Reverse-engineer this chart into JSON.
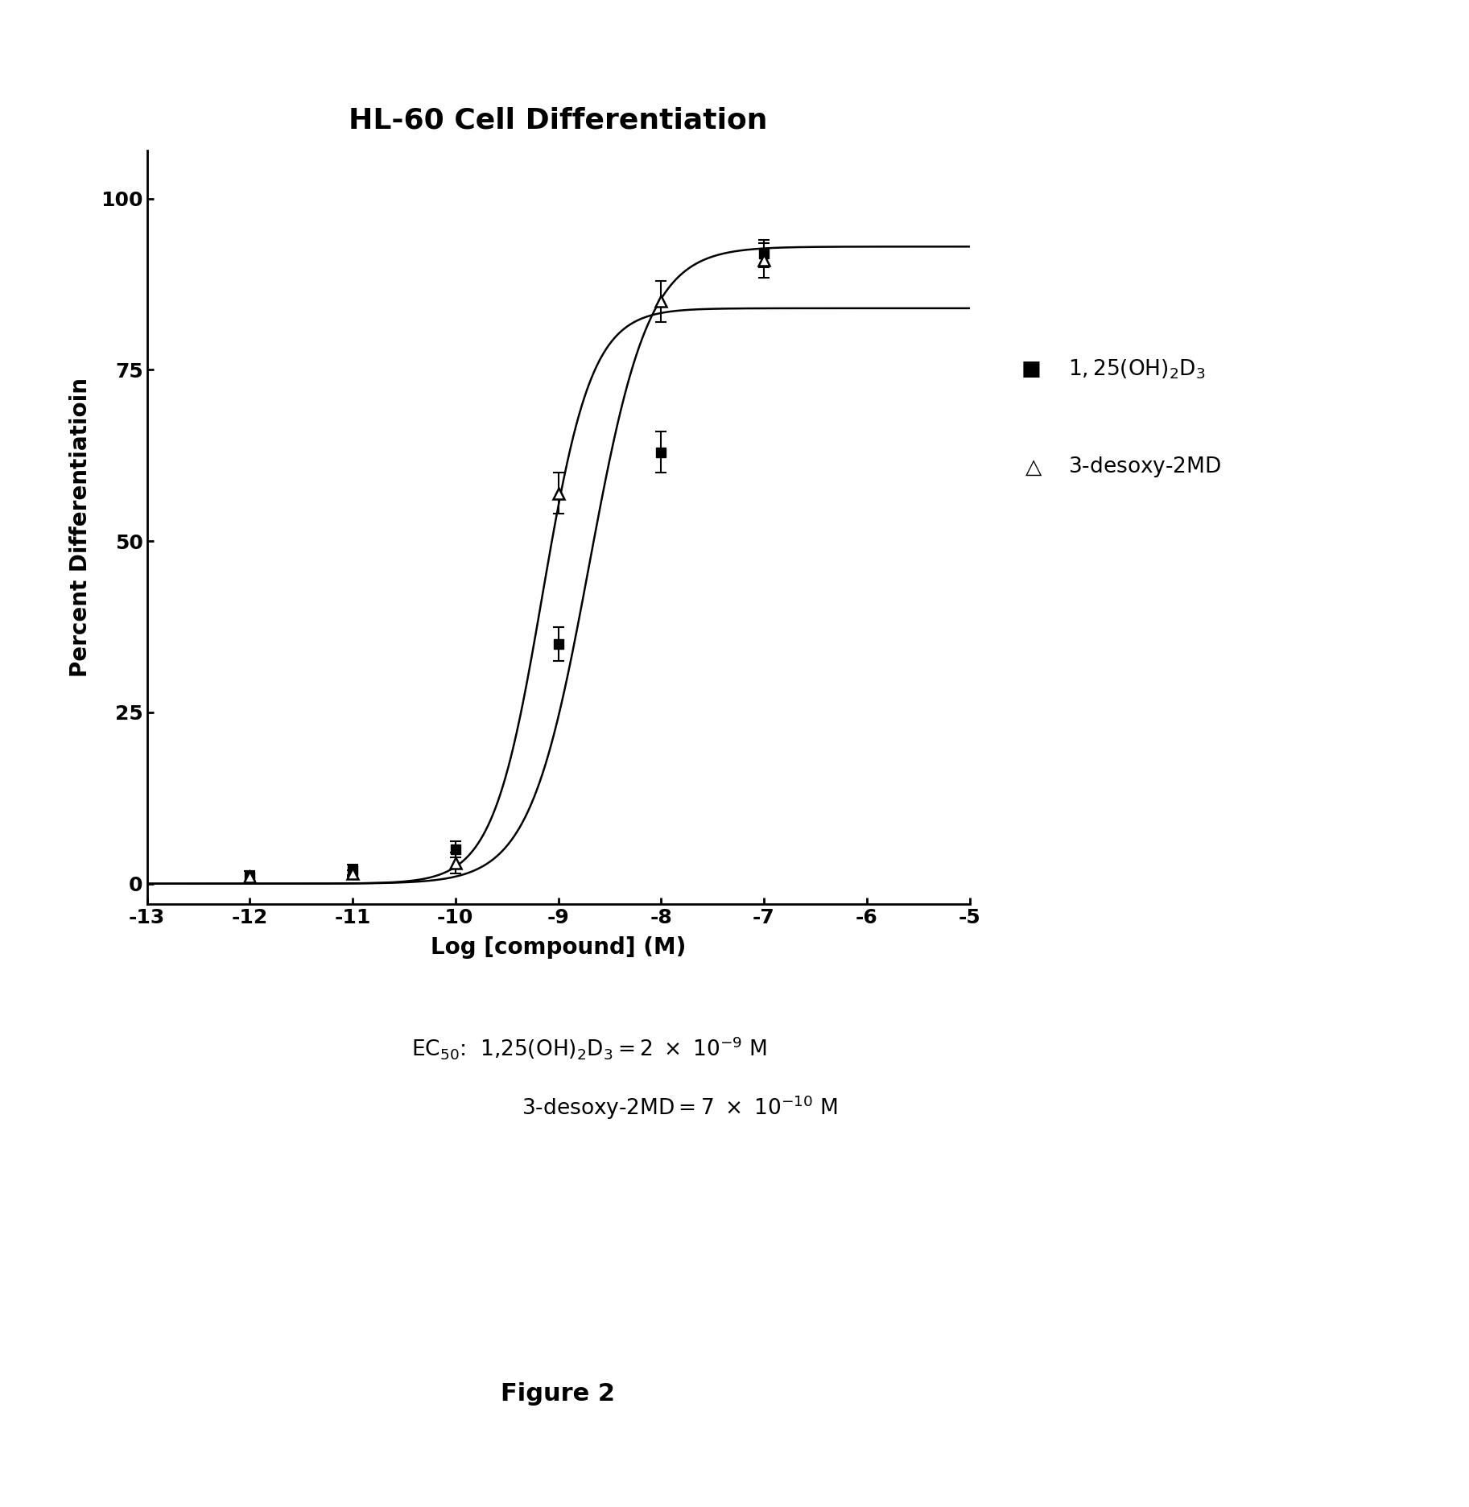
{
  "title": "HL-60 Cell Differentiation",
  "xlabel": "Log [compound] (M)",
  "ylabel": "Percent Differentiatioin",
  "xlim": [
    -13,
    -5
  ],
  "ylim": [
    -3,
    107
  ],
  "xticks": [
    -13,
    -12,
    -11,
    -10,
    -9,
    -8,
    -7,
    -6,
    -5
  ],
  "yticks": [
    0,
    25,
    50,
    75,
    100
  ],
  "ec50_1": 2e-09,
  "ec50_2": 7e-10,
  "hill_1": 1.5,
  "hill_2": 1.8,
  "ymax_1": 93,
  "ymax_2": 84,
  "data1_x": [
    -12,
    -11,
    -10,
    -9,
    -8,
    -7
  ],
  "data1_y": [
    1.0,
    2.0,
    5.0,
    35.0,
    63.0,
    92.0
  ],
  "data1_yerr": [
    0.8,
    0.8,
    1.2,
    2.5,
    3.0,
    2.0
  ],
  "data2_x": [
    -12,
    -11,
    -10,
    -9,
    -8,
    -7
  ],
  "data2_y": [
    1.0,
    1.5,
    3.0,
    57.0,
    85.0,
    91.0
  ],
  "data2_yerr": [
    0.8,
    0.5,
    1.5,
    3.0,
    3.0,
    2.5
  ],
  "title_fontsize": 26,
  "label_fontsize": 20,
  "tick_fontsize": 18,
  "legend_fontsize": 19,
  "annotation_fontsize": 19,
  "fig_label_fontsize": 22
}
